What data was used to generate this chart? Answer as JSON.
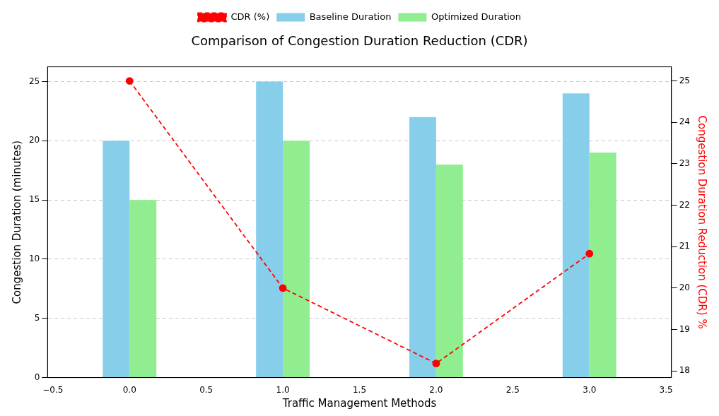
{
  "chart_data": {
    "type": "bar",
    "title": "Comparison of Congestion Duration Reduction (CDR)",
    "xlabel": "Traffic Management Methods",
    "ylabel": "Congestion Duration (minutes)",
    "y2label": "Congestion Duration Reduction (CDR) %",
    "x": [
      0,
      1,
      2,
      3
    ],
    "series": [
      {
        "name": "Baseline Duration",
        "color": "#87ceeb",
        "values": [
          20,
          25,
          22,
          24
        ]
      },
      {
        "name": "Optimized Duration",
        "color": "#90ee90",
        "values": [
          15,
          20,
          18,
          19
        ]
      },
      {
        "name": "CDR (%)",
        "type": "line",
        "axis": "y2",
        "color": "#ff0000",
        "values": [
          25,
          20,
          18.18,
          20.83
        ],
        "marker": "circle",
        "line_style": "dashed"
      }
    ],
    "xlim": [
      -0.535,
      3.535
    ],
    "xticks": [
      {
        "value": -0.5,
        "label": "−0.5"
      },
      {
        "value": 0,
        "label": "0.0"
      },
      {
        "value": 0.5,
        "label": "0.5"
      },
      {
        "value": 1,
        "label": "1.0"
      },
      {
        "value": 1.5,
        "label": "1.5"
      },
      {
        "value": 2,
        "label": "2.0"
      },
      {
        "value": 2.5,
        "label": "2.5"
      },
      {
        "value": 3,
        "label": "3.0"
      },
      {
        "value": 3.5,
        "label": "3.5"
      }
    ],
    "ylim": [
      0,
      26.25
    ],
    "yticks": [
      0,
      5,
      10,
      15,
      20,
      25
    ],
    "y2lim": [
      17.84,
      25.34
    ],
    "y2ticks": [
      18,
      19,
      20,
      21,
      22,
      23,
      24,
      25
    ],
    "grid": "y",
    "legend": "top"
  }
}
